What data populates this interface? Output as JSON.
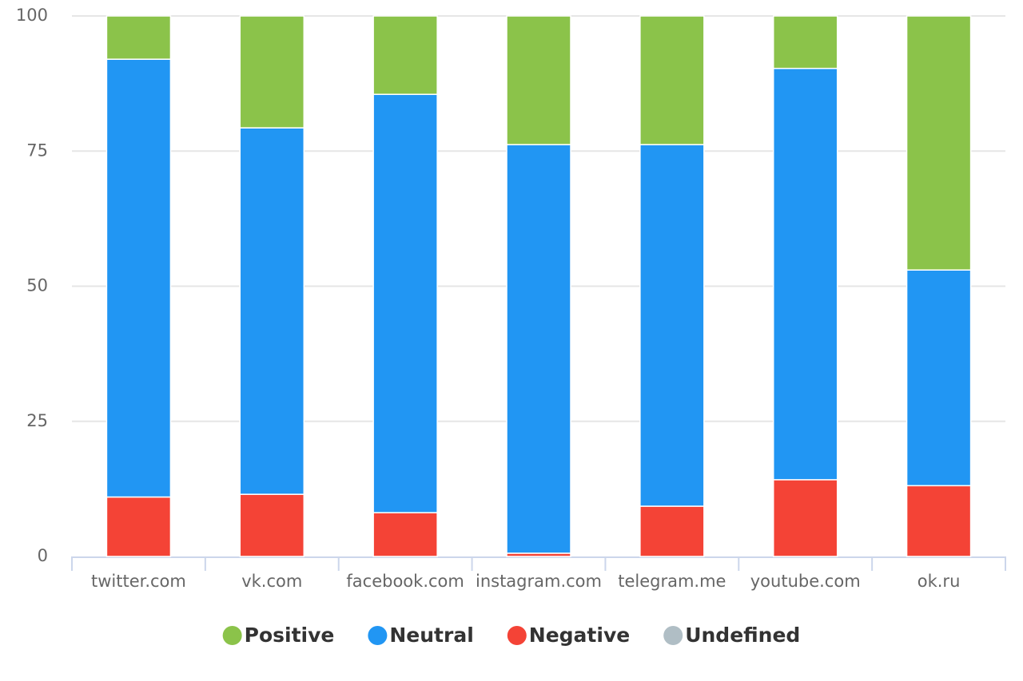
{
  "chart_data": {
    "type": "bar",
    "stacked": true,
    "categories": [
      "twitter.com",
      "vk.com",
      "facebook.com",
      "instagram.com",
      "telegram.me",
      "youtube.com",
      "ok.ru"
    ],
    "series": [
      {
        "name": "Positive",
        "color": "#8bc34a",
        "values": [
          8,
          20.7,
          14.5,
          23.8,
          23.8,
          9.7,
          47
        ]
      },
      {
        "name": "Neutral",
        "color": "#2196f3",
        "values": [
          81,
          67.8,
          77.4,
          75.6,
          66.9,
          76.1,
          39.9
        ]
      },
      {
        "name": "Negative",
        "color": "#f44336",
        "values": [
          11,
          11.5,
          8.1,
          0.6,
          9.3,
          14.2,
          13.1
        ]
      },
      {
        "name": "Undefined",
        "color": "#b0bec5",
        "values": [
          0,
          0,
          0,
          0,
          0,
          0,
          0
        ]
      }
    ],
    "ylim": [
      0,
      100
    ],
    "yticks": [
      0,
      25,
      50,
      75,
      100
    ],
    "grid": true
  }
}
